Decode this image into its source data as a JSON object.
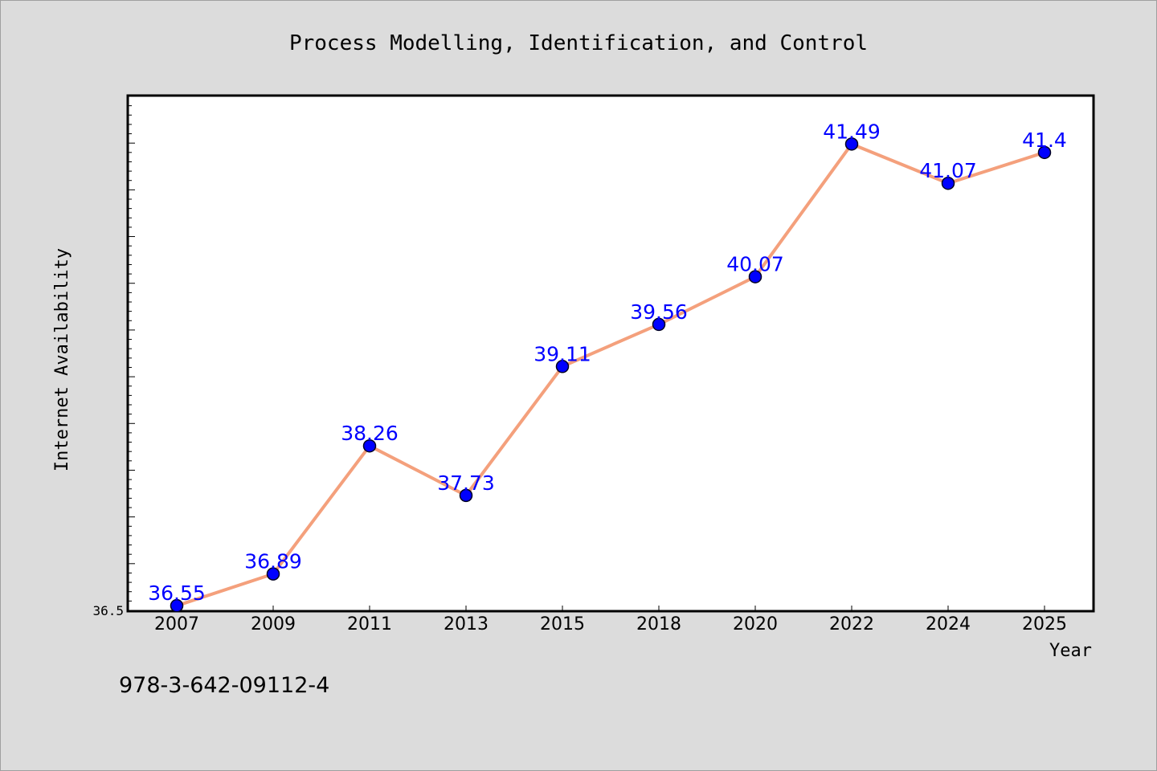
{
  "chart_data": {
    "type": "line",
    "title": "Process Modelling, Identification, and Control",
    "xlabel": "Year",
    "ylabel": "Internet Availability",
    "categories": [
      "2007",
      "2009",
      "2011",
      "2013",
      "2015",
      "2018",
      "2020",
      "2022",
      "2024",
      "2025"
    ],
    "series": [
      {
        "values": [
          36.55,
          36.89,
          38.26,
          37.73,
          39.11,
          39.56,
          40.07,
          41.49,
          41.07,
          41.4
        ]
      }
    ],
    "ylim": [
      36.5,
      42.0
    ],
    "yticks": [
      "36.5"
    ],
    "grid": false,
    "line_color": "#f4a07c",
    "marker_color": "#0000ff",
    "label_color": "#0000ff",
    "background": "#dcdcdc",
    "plot_background": "#ffffff"
  },
  "footer": {
    "text": "978-3-642-09112-4"
  }
}
